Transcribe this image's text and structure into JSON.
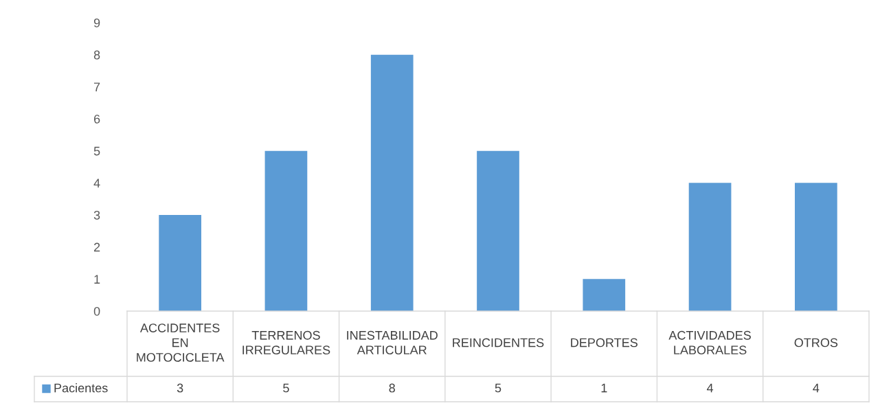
{
  "chart_data": {
    "type": "bar",
    "categories": [
      "ACCIDENTES EN MOTOCICLETA",
      "TERRENOS IRREGULARES",
      "INESTABILIDAD ARTICULAR",
      "REINCIDENTES",
      "DEPORTES",
      "ACTIVIDADES LABORALES",
      "OTROS"
    ],
    "series": [
      {
        "name": "Pacientes",
        "color": "#5b9bd5",
        "values": [
          3,
          5,
          8,
          5,
          1,
          4,
          4
        ]
      }
    ],
    "ylim": [
      0,
      9
    ],
    "yticks": [
      0,
      1,
      2,
      3,
      4,
      5,
      6,
      7,
      8,
      9
    ],
    "data_labels": true,
    "grid": false,
    "legend": "bottom left"
  }
}
